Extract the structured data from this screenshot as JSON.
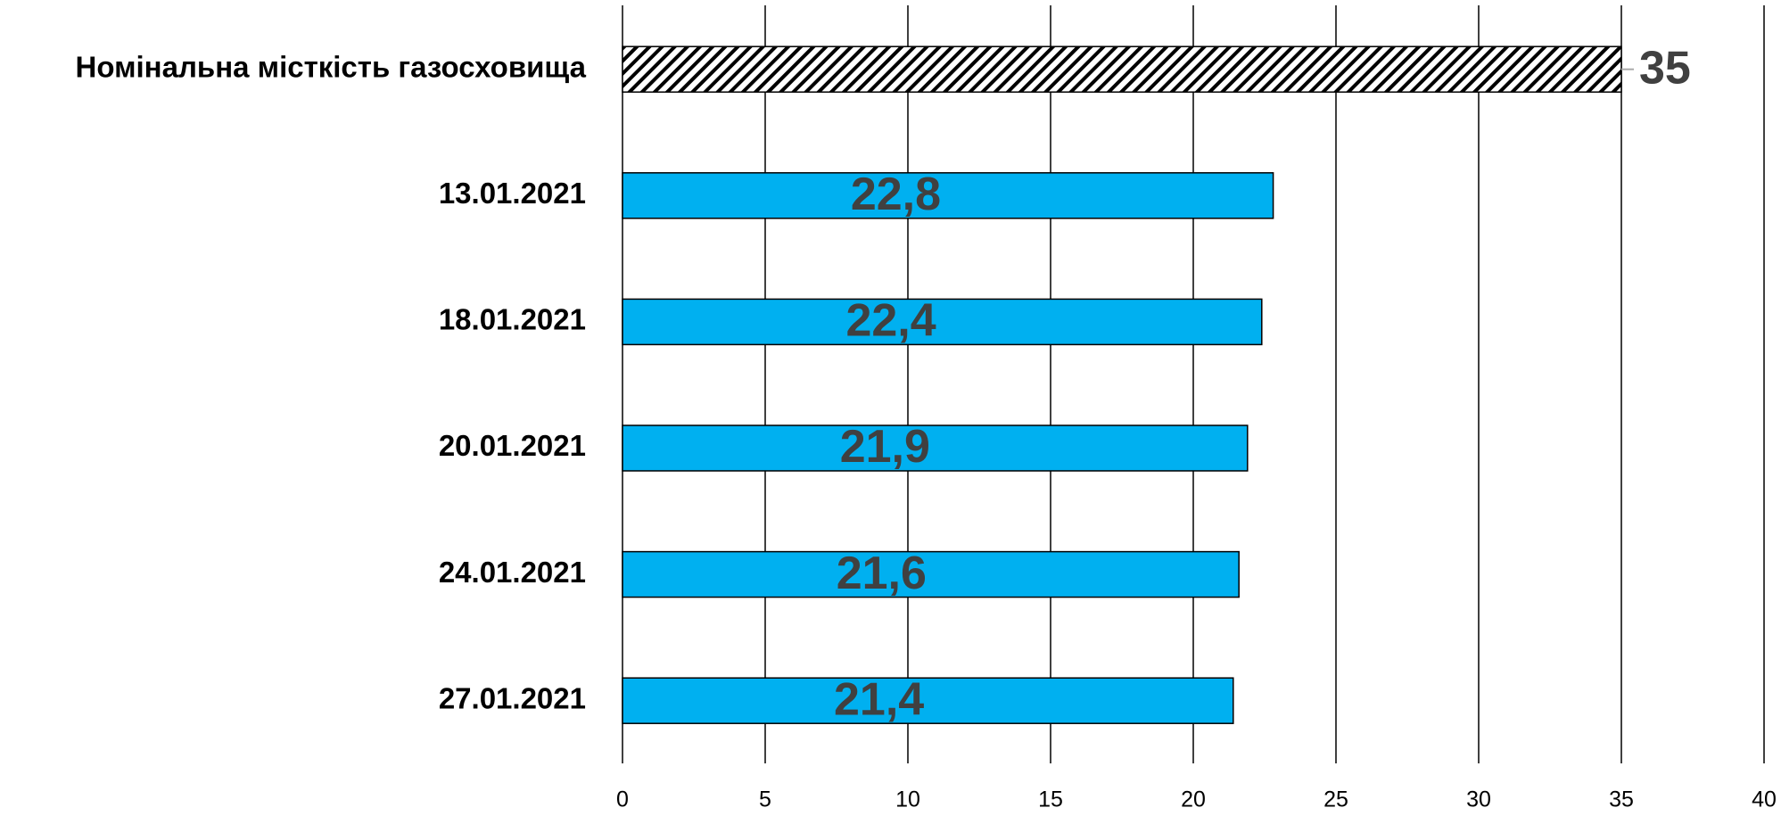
{
  "chart_data": {
    "type": "bar",
    "orientation": "horizontal",
    "categories": [
      "Номінальна місткість газосховища",
      "13.01.2021",
      "18.01.2021",
      "20.01.2021",
      "24.01.2021",
      "27.01.2021"
    ],
    "values": [
      35,
      22.8,
      22.4,
      21.9,
      21.6,
      21.4
    ],
    "value_labels": [
      "35",
      "22,8",
      "22,4",
      "21,9",
      "21,6",
      "21,4"
    ],
    "colors": [
      "#000000",
      "#00b0f0",
      "#00b0f0",
      "#00b0f0",
      "#00b0f0",
      "#00b0f0"
    ],
    "hatched": [
      true,
      false,
      false,
      false,
      false,
      false
    ],
    "xlim": [
      0,
      40
    ],
    "xticks": [
      0,
      5,
      10,
      15,
      20,
      25,
      30,
      35,
      40
    ],
    "grid": true
  }
}
